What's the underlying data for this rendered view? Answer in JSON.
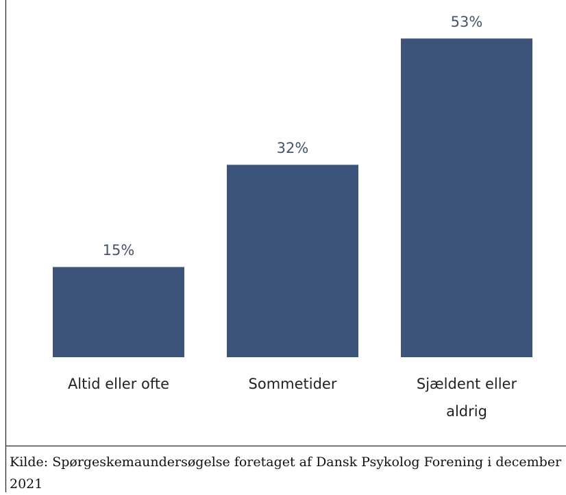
{
  "chart_data": {
    "type": "bar",
    "categories": [
      "Altid eller ofte",
      "Sommetider",
      "Sjældent eller aldrig"
    ],
    "values": [
      15,
      32,
      53
    ],
    "value_labels": [
      "15%",
      "32%",
      "53%"
    ],
    "color": "#3c5479",
    "source": "Kilde: Spørgeskemaundersøgelse foretaget af Dansk Psykolog Forening i december 2021"
  }
}
